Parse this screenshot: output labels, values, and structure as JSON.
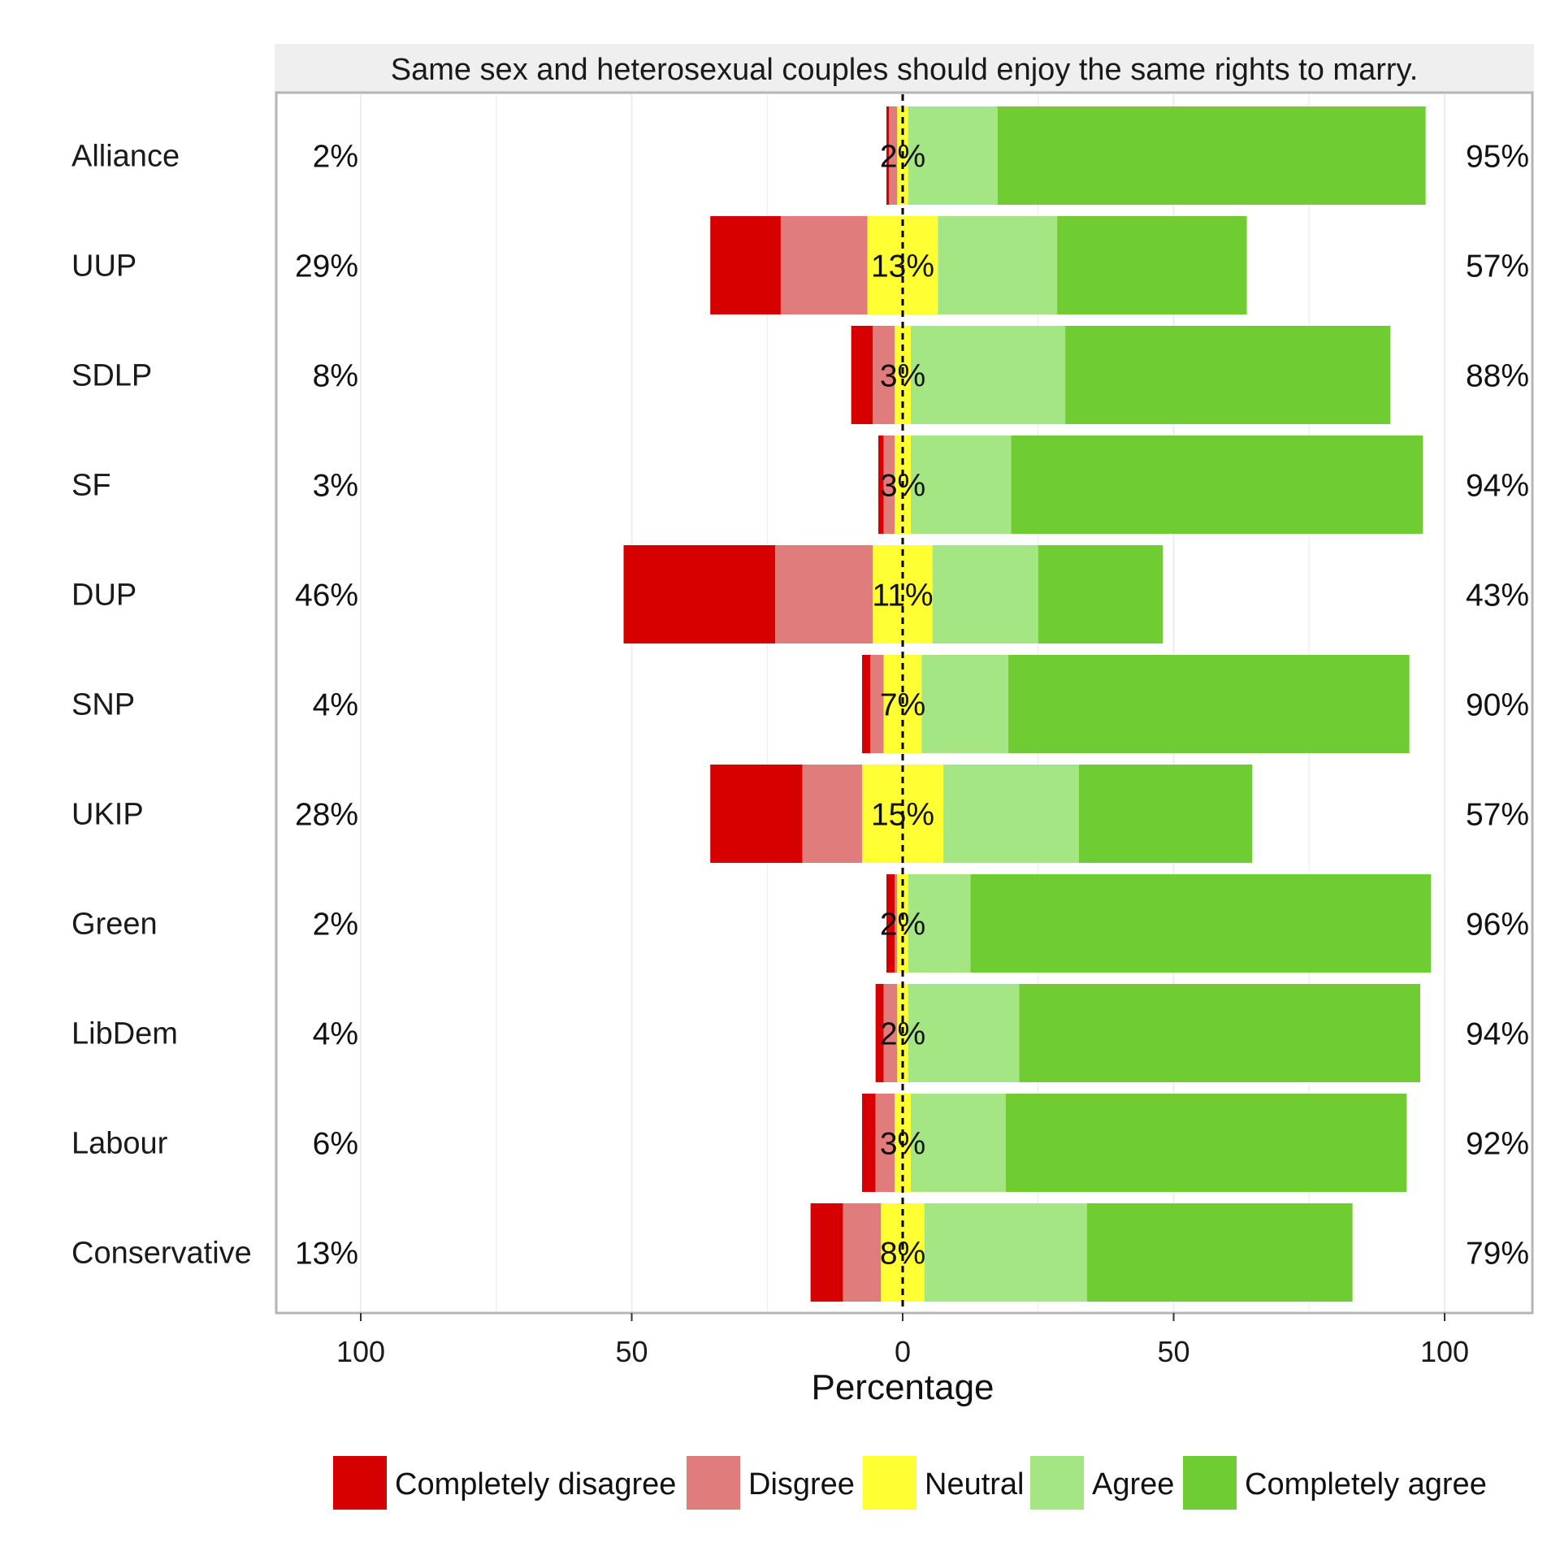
{
  "chart_data": {
    "type": "bar",
    "orientation": "horizontal",
    "stacked": true,
    "diverging": true,
    "title": "Same sex and heterosexual couples should enjoy the same rights to marry.",
    "xlabel": "Percentage",
    "ylabel": "",
    "xlim": [
      -100,
      100
    ],
    "x_ticks": [
      -100,
      -50,
      0,
      50,
      100
    ],
    "x_tick_labels": [
      "100",
      "50",
      "0",
      "50",
      "100"
    ],
    "grid": true,
    "legend_position": "bottom",
    "categories": [
      "Alliance",
      "UUP",
      "SDLP",
      "SF",
      "DUP",
      "SNP",
      "UKIP",
      "Green",
      "LibDem",
      "Labour",
      "Conservative"
    ],
    "series": [
      {
        "name": "Completely disagree",
        "color": "#d60000",
        "values": [
          0.5,
          13,
          4,
          1,
          28,
          1.5,
          17,
          1.5,
          1.5,
          2.5,
          6
        ]
      },
      {
        "name": "Disgree",
        "color": "#e17c7c",
        "values": [
          1.5,
          16,
          4,
          2,
          18,
          2.5,
          11,
          0.5,
          2.5,
          3.5,
          7
        ]
      },
      {
        "name": "Neutral",
        "color": "#ffff33",
        "values": [
          2,
          13,
          3,
          3,
          11,
          7,
          15,
          2,
          2,
          3,
          8
        ]
      },
      {
        "name": "Agree",
        "color": "#a3e683",
        "values": [
          16.5,
          22,
          28.5,
          18.5,
          19.5,
          16,
          25,
          11.5,
          20.5,
          17.5,
          30
        ]
      },
      {
        "name": "Completely agree",
        "color": "#70cc33",
        "values": [
          79,
          35,
          60,
          76,
          23,
          74,
          32,
          85,
          74,
          74,
          49
        ]
      }
    ],
    "disagree_labels": [
      "2%",
      "29%",
      "8%",
      "3%",
      "46%",
      "4%",
      "28%",
      "2%",
      "4%",
      "6%",
      "13%"
    ],
    "neutral_labels": [
      "2%",
      "13%",
      "3%",
      "3%",
      "11%",
      "7%",
      "15%",
      "2%",
      "2%",
      "3%",
      "8%"
    ],
    "agree_labels": [
      "95%",
      "57%",
      "88%",
      "94%",
      "43%",
      "90%",
      "57%",
      "96%",
      "94%",
      "92%",
      "79%"
    ]
  }
}
